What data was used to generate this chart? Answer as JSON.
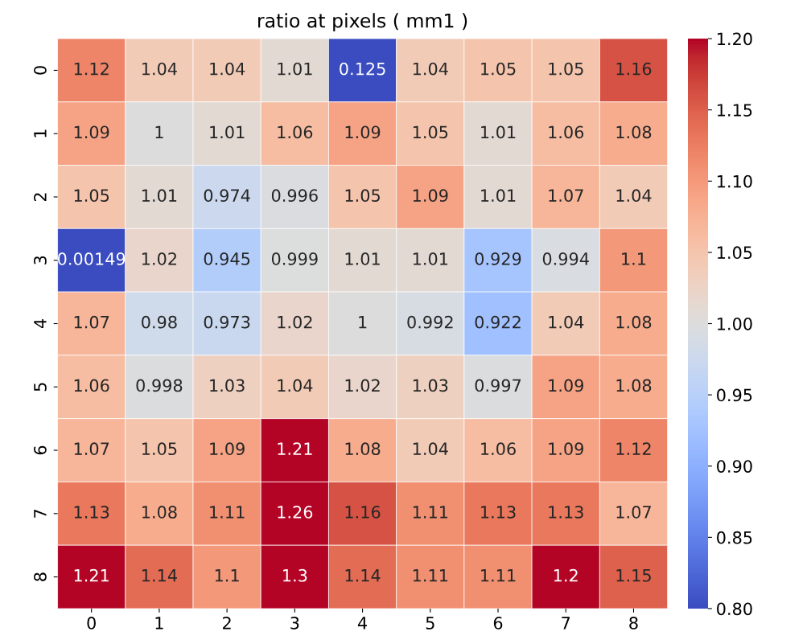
{
  "chart_data": {
    "type": "heatmap",
    "title": "ratio at pixels ( mm1 )",
    "categories": [
      "0",
      "1",
      "2",
      "3",
      "4",
      "5",
      "6",
      "7",
      "8"
    ],
    "y_categories": [
      "0",
      "1",
      "2",
      "3",
      "4",
      "5",
      "6",
      "7",
      "8"
    ],
    "cells": [
      [
        1.12,
        1.04,
        1.04,
        1.01,
        0.125,
        1.04,
        1.05,
        1.05,
        1.16
      ],
      [
        1.09,
        1,
        1.01,
        1.06,
        1.09,
        1.05,
        1.01,
        1.06,
        1.08
      ],
      [
        1.05,
        1.01,
        0.974,
        0.996,
        1.05,
        1.09,
        1.01,
        1.07,
        1.04
      ],
      [
        0.00149,
        1.02,
        0.945,
        0.999,
        1.01,
        1.01,
        0.929,
        0.994,
        1.1
      ],
      [
        1.07,
        0.98,
        0.973,
        1.02,
        1,
        0.992,
        0.922,
        1.04,
        1.08
      ],
      [
        1.06,
        0.998,
        1.03,
        1.04,
        1.02,
        1.03,
        0.997,
        1.09,
        1.08
      ],
      [
        1.07,
        1.05,
        1.09,
        1.21,
        1.08,
        1.04,
        1.06,
        1.09,
        1.12
      ],
      [
        1.13,
        1.08,
        1.11,
        1.26,
        1.16,
        1.11,
        1.13,
        1.13,
        1.07
      ],
      [
        1.21,
        1.14,
        1.1,
        1.3,
        1.14,
        1.11,
        1.11,
        1.2,
        1.15
      ]
    ],
    "clim": [
      0.8,
      1.2
    ],
    "cticks": [
      {
        "value": 0.8,
        "label": "0.80"
      },
      {
        "value": 0.85,
        "label": "0.85"
      },
      {
        "value": 0.9,
        "label": "0.90"
      },
      {
        "value": 0.95,
        "label": "0.95"
      },
      {
        "value": 1.0,
        "label": "1.00"
      },
      {
        "value": 1.05,
        "label": "1.05"
      },
      {
        "value": 1.1,
        "label": "1.10"
      },
      {
        "value": 1.15,
        "label": "1.15"
      },
      {
        "value": 1.2,
        "label": "1.20"
      }
    ],
    "data_labels": true
  }
}
